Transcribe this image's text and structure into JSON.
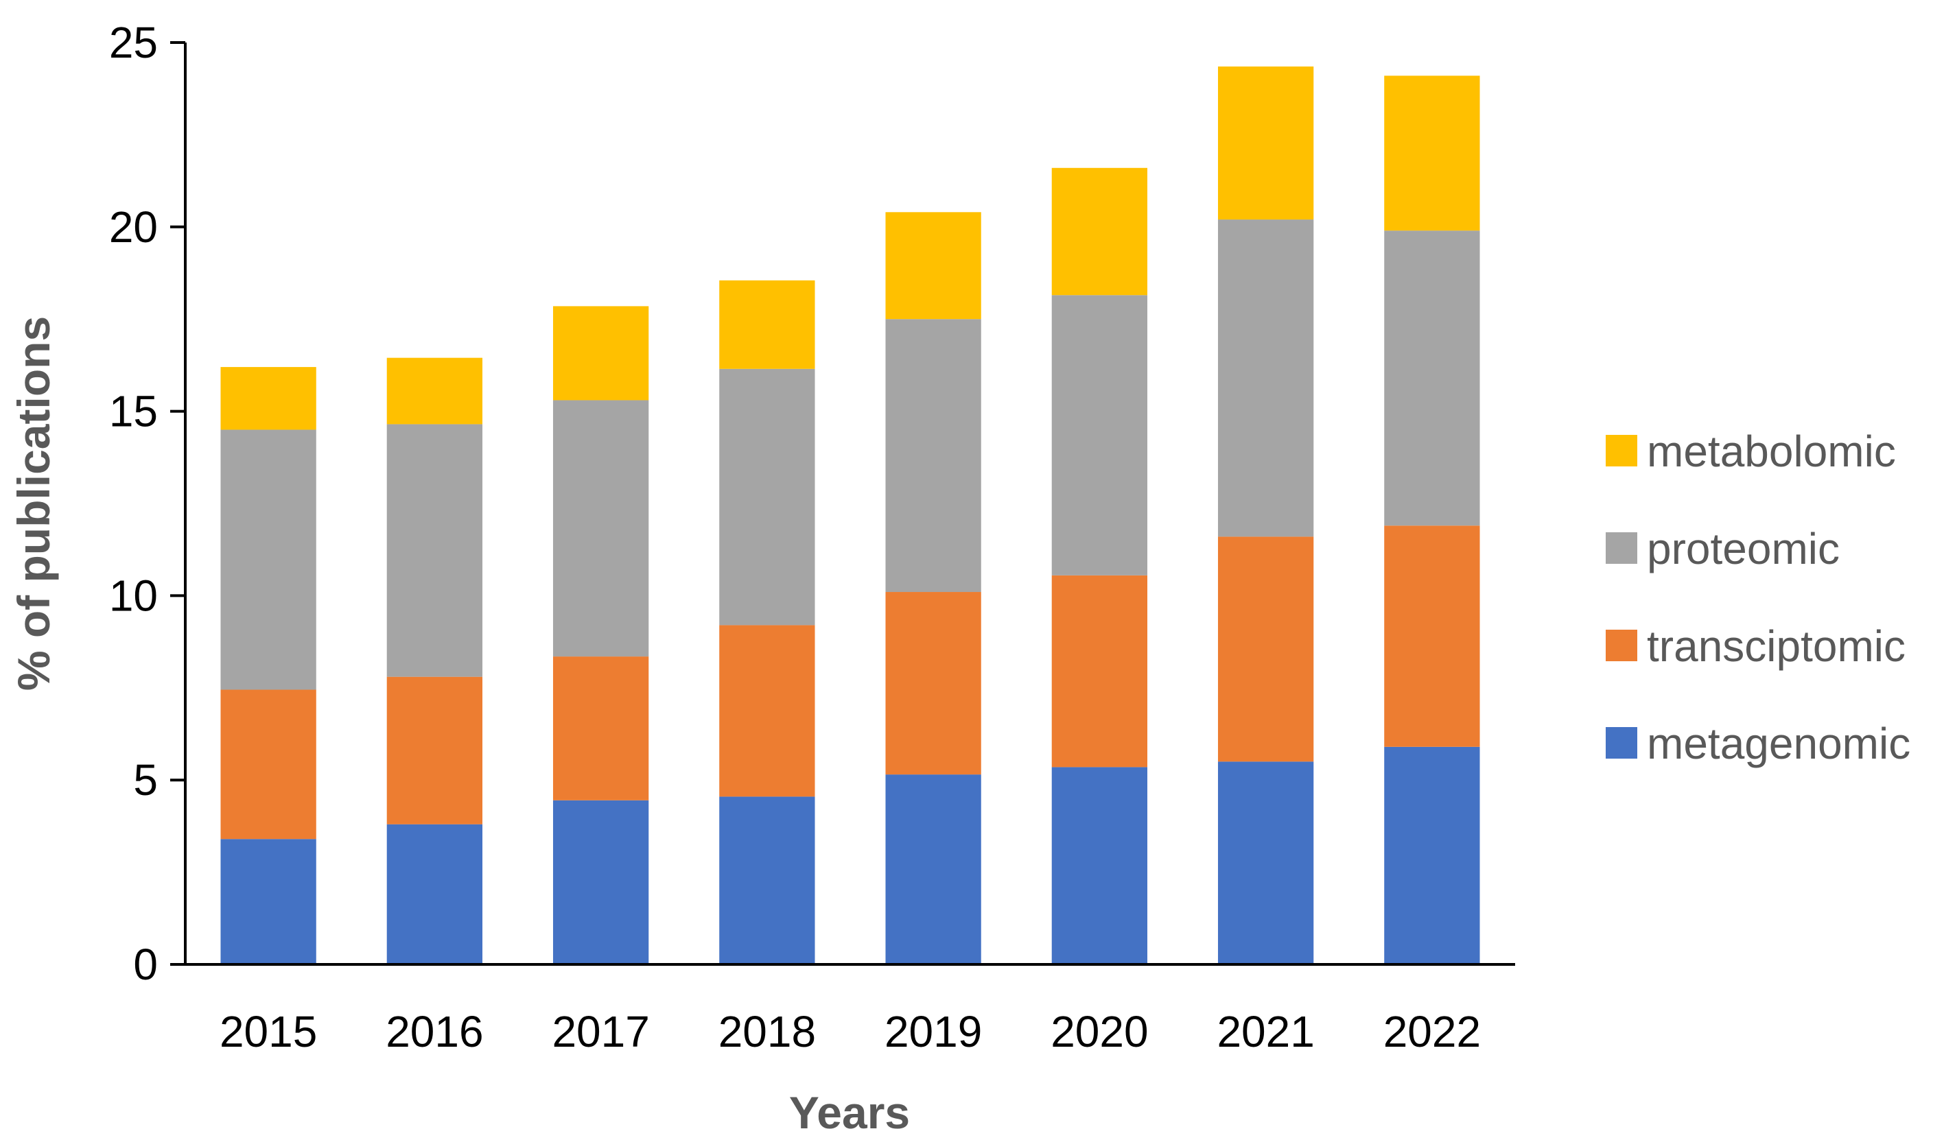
{
  "chart_data": {
    "type": "bar",
    "stacked": true,
    "title": "",
    "xlabel": "Years",
    "ylabel": "% of publications",
    "ylim": [
      0,
      25
    ],
    "yticks": [
      0,
      5,
      10,
      15,
      20,
      25
    ],
    "grid": false,
    "legend_position": "right",
    "categories": [
      "2015",
      "2016",
      "2017",
      "2018",
      "2019",
      "2020",
      "2021",
      "2022"
    ],
    "series": [
      {
        "name": "metagenomic",
        "color": "#4472C4",
        "values": [
          3.4,
          3.8,
          4.45,
          4.55,
          5.15,
          5.35,
          5.5,
          5.9
        ]
      },
      {
        "name": "transciptomic",
        "color": "#ED7D31",
        "values": [
          4.05,
          4.0,
          3.9,
          4.65,
          4.95,
          5.2,
          6.1,
          6.0
        ]
      },
      {
        "name": "proteomic",
        "color": "#A5A5A5",
        "values": [
          7.05,
          6.85,
          6.95,
          6.95,
          7.4,
          7.6,
          8.6,
          8.0
        ]
      },
      {
        "name": "metabolomic",
        "color": "#FFC000",
        "values": [
          1.7,
          1.8,
          2.55,
          2.4,
          2.9,
          3.45,
          4.15,
          4.2
        ]
      }
    ],
    "legend_order": [
      "metabolomic",
      "proteomic",
      "transciptomic",
      "metagenomic"
    ]
  }
}
